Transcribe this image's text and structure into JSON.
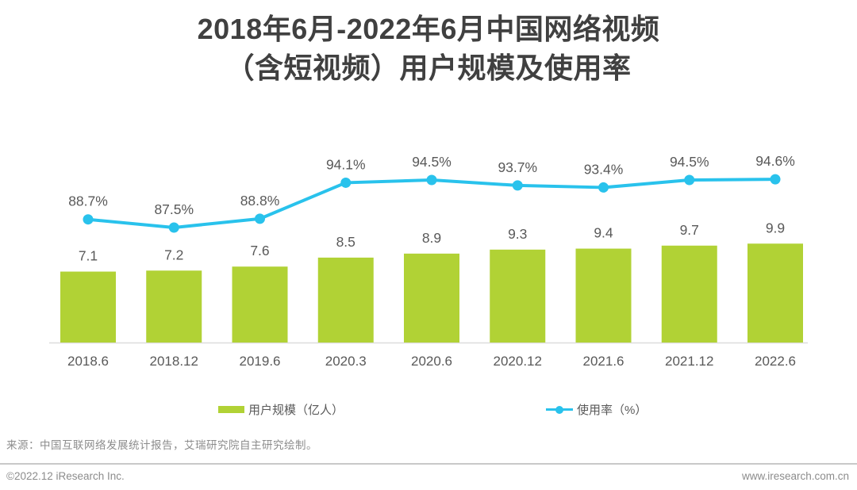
{
  "title": {
    "line1": "2018年6月-2022年6月中国网络视频",
    "line2": "（含短视频）用户规模及使用率"
  },
  "chart_data": {
    "type": "combo",
    "title": "2018年6月-2022年6月中国网络视频（含短视频）用户规模及使用率",
    "categories": [
      "2018.6",
      "2018.12",
      "2019.6",
      "2020.3",
      "2020.6",
      "2020.12",
      "2021.6",
      "2021.12",
      "2022.6"
    ],
    "series": [
      {
        "name": "用户规模（亿人）",
        "type": "bar",
        "values": [
          7.1,
          7.2,
          7.6,
          8.5,
          8.9,
          9.3,
          9.4,
          9.7,
          9.9
        ],
        "color": "#b1d235",
        "label_format": "{v}"
      },
      {
        "name": "使用率（%）",
        "type": "line",
        "values": [
          88.7,
          87.5,
          88.8,
          94.1,
          94.5,
          93.7,
          93.4,
          94.5,
          94.6
        ],
        "color": "#29c2ec",
        "label_format": "{v}%"
      }
    ],
    "grid": false,
    "legend_position": "bottom",
    "y_axis_hidden": true,
    "bar_axis_starts_at_zero": true
  },
  "colors": {
    "bar": "#b1d235",
    "line": "#29c2ec",
    "data_label": "#595959",
    "axis_label": "#595959",
    "title": "#404040",
    "axis_line": "#dddddd"
  },
  "source_note": "来源：中国互联网络发展统计报告，艾瑞研究院自主研究绘制。",
  "footer": {
    "left": "©2022.12 iResearch Inc.",
    "right": "www.iresearch.com.cn"
  }
}
